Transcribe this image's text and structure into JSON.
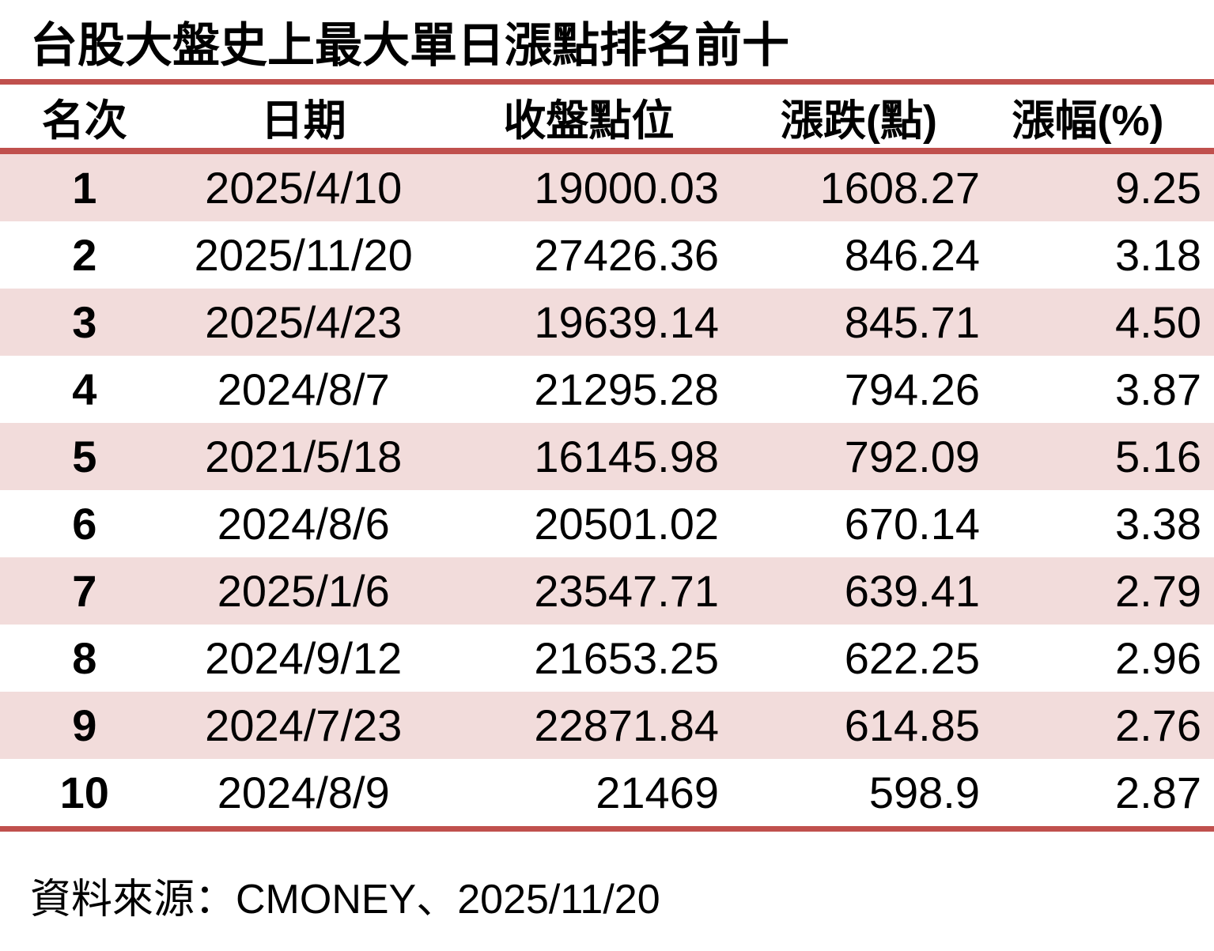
{
  "title": "台股大盤史上最大單日漲點排名前十",
  "colors": {
    "accent_line": "#c0504d",
    "row_stripe": "#f2dcdb",
    "text": "#000000",
    "background": "#ffffff"
  },
  "footer": {
    "source_label": "資料來源：CMONEY、2025/11/20"
  },
  "chart_data": {
    "type": "table",
    "title": "台股大盤史上最大單日漲點排名前十",
    "columns": [
      "名次",
      "日期",
      "收盤點位",
      "漲跌(點)",
      "漲幅(%)"
    ],
    "rows": [
      {
        "rank": "1",
        "date": "2025/4/10",
        "close": "19000.03",
        "change": "1608.27",
        "pct": "9.25"
      },
      {
        "rank": "2",
        "date": "2025/11/20",
        "close": "27426.36",
        "change": "846.24",
        "pct": "3.18"
      },
      {
        "rank": "3",
        "date": "2025/4/23",
        "close": "19639.14",
        "change": "845.71",
        "pct": "4.50"
      },
      {
        "rank": "4",
        "date": "2024/8/7",
        "close": "21295.28",
        "change": "794.26",
        "pct": "3.87"
      },
      {
        "rank": "5",
        "date": "2021/5/18",
        "close": "16145.98",
        "change": "792.09",
        "pct": "5.16"
      },
      {
        "rank": "6",
        "date": "2024/8/6",
        "close": "20501.02",
        "change": "670.14",
        "pct": "3.38"
      },
      {
        "rank": "7",
        "date": "2025/1/6",
        "close": "23547.71",
        "change": "639.41",
        "pct": "2.79"
      },
      {
        "rank": "8",
        "date": "2024/9/12",
        "close": "21653.25",
        "change": "622.25",
        "pct": "2.96"
      },
      {
        "rank": "9",
        "date": "2024/7/23",
        "close": "22871.84",
        "change": "614.85",
        "pct": "2.76"
      },
      {
        "rank": "10",
        "date": "2024/8/9",
        "close": "21469",
        "change": "598.9",
        "pct": "2.87"
      }
    ]
  }
}
